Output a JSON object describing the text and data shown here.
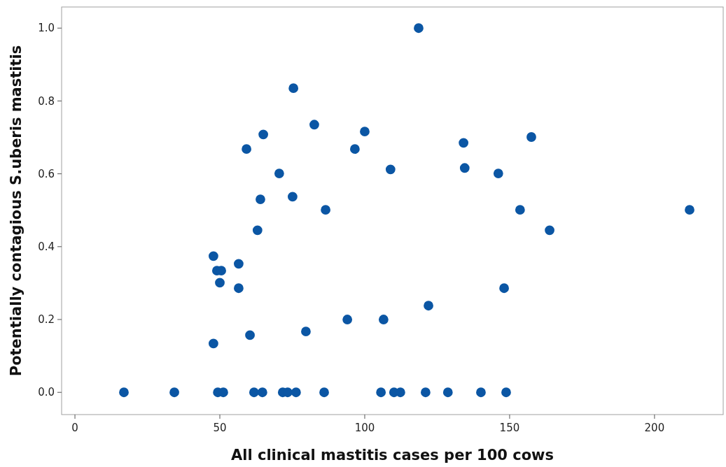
{
  "chart_data": {
    "type": "scatter",
    "xlabel": "All clinical mastitis cases per 100 cows",
    "ylabel": "Potentially contagious S.uberis mastitis",
    "xlim": [
      -4.6,
      223.7
    ],
    "ylim": [
      -0.061,
      1.058
    ],
    "xticks": [
      0,
      50,
      100,
      150,
      200
    ],
    "yticks": [
      {
        "value": 0,
        "label": "0.0"
      },
      {
        "value": 0.2,
        "label": "0.2"
      },
      {
        "value": 0.4,
        "label": "0.4"
      },
      {
        "value": 0.6,
        "label": "0.6"
      },
      {
        "value": 0.8,
        "label": "0.8"
      },
      {
        "value": 1,
        "label": "1.0"
      }
    ],
    "grid": false,
    "marker": "circle",
    "series": [
      {
        "color": "#0b56a4",
        "x": [
          16.9,
          34.3,
          49.3,
          51.2,
          61.8,
          64.7,
          71.7,
          73.4,
          76.3,
          86.0,
          105.6,
          110.1,
          112.3,
          121.0,
          128.7,
          140.1,
          148.8,
          47.8,
          49.0,
          50.5,
          50.0,
          47.8,
          56.5,
          56.5,
          59.2,
          60.4,
          63.0,
          64.0,
          65.0,
          70.5,
          75.1,
          75.4,
          79.7,
          82.6,
          86.5,
          94.0,
          96.6,
          100.0,
          106.5,
          108.9,
          118.6,
          122.0,
          134.1,
          134.5,
          146.1,
          148.1,
          153.6,
          157.5,
          163.8,
          212.1
        ],
        "values": [
          0,
          0,
          0,
          0,
          0,
          0,
          0,
          0,
          0,
          0,
          0,
          0,
          0,
          0,
          0,
          0,
          0,
          0.374,
          0.334,
          0.334,
          0.301,
          0.134,
          0.353,
          0.286,
          0.668,
          0.157,
          0.445,
          0.53,
          0.708,
          0.601,
          0.537,
          0.835,
          0.167,
          0.735,
          0.501,
          0.2,
          0.668,
          0.716,
          0.2,
          0.612,
          1.0,
          0.238,
          0.685,
          0.616,
          0.601,
          0.286,
          0.501,
          0.701,
          0.445,
          0.501
        ]
      }
    ]
  }
}
